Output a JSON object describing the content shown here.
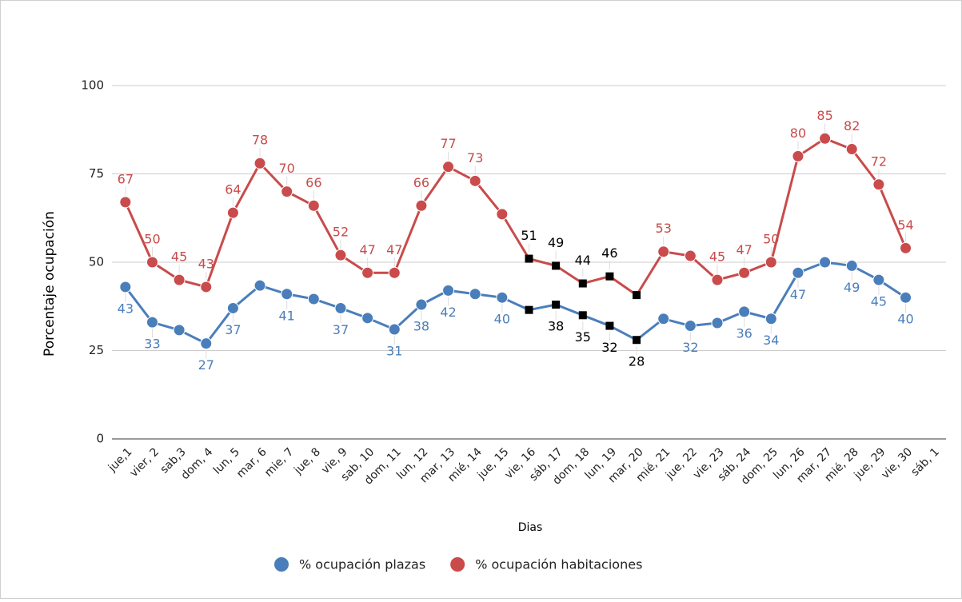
{
  "chart_data": {
    "type": "line",
    "x_label": "Dias",
    "y_label": "Porcentaje ocupación",
    "categories": [
      "jue,1",
      "vier, 2",
      "sab,3",
      "dom, 4",
      "lun, 5",
      "mar, 6",
      "mie, 7",
      "jue, 8",
      "vie, 9",
      "sab, 10",
      "dom, 11",
      "lun, 12",
      "mar, 13",
      "mié, 14",
      "jue, 15",
      "vie, 16",
      "sáb, 17",
      "dom, 18",
      "lun, 19",
      "mar, 20",
      "mié, 21",
      "jue, 22",
      "vie, 23",
      "sáb, 24",
      "dom, 25",
      "lun, 26",
      "mar, 27",
      "mié, 28",
      "jue, 29",
      "vie, 30",
      "sáb, 1"
    ],
    "series": [
      {
        "name": "% ocupación plazas",
        "color": "#4a7ebb",
        "label_position": "below",
        "values": [
          43,
          33,
          30.8,
          27,
          37,
          43.4,
          41,
          39.6,
          37,
          34.2,
          31,
          38,
          42,
          41,
          40,
          36.5,
          38,
          35,
          32,
          28,
          34,
          32,
          32.8,
          36,
          34,
          47,
          50,
          49,
          45,
          40,
          null
        ],
        "value_labels": [
          "43",
          "33",
          null,
          "27",
          "37",
          null,
          "41",
          null,
          "37",
          null,
          "31",
          "38",
          "42",
          null,
          "40",
          null,
          "38",
          "35",
          "32",
          "28",
          null,
          "32",
          null,
          "36",
          "34",
          "47",
          null,
          "49",
          "45",
          "40",
          null
        ]
      },
      {
        "name": "% ocupación habitaciones",
        "color": "#c94b4b",
        "label_position": "above",
        "values": [
          67,
          50,
          45,
          43,
          64,
          78,
          70,
          66,
          52,
          47,
          47,
          66,
          77,
          73,
          63.6,
          51,
          49,
          44,
          46,
          40.7,
          53,
          51.8,
          45,
          47,
          50,
          80,
          85,
          82,
          72,
          54,
          null
        ],
        "value_labels": [
          "67",
          "50",
          "45",
          "43",
          "64",
          "78",
          "70",
          "66",
          "52",
          "47",
          "47",
          "66",
          "77",
          "73",
          null,
          "51",
          "49",
          "44",
          "46",
          null,
          "53",
          null,
          "45",
          "47",
          "50",
          "80",
          "85",
          "82",
          "72",
          "54",
          null
        ]
      }
    ],
    "highlight_range": [
      15,
      19
    ],
    "highlight_color": "#000000",
    "ylim": [
      0,
      100
    ],
    "yticks": [
      0,
      25,
      50,
      75,
      100
    ],
    "grid": true,
    "legend": "bottom"
  }
}
